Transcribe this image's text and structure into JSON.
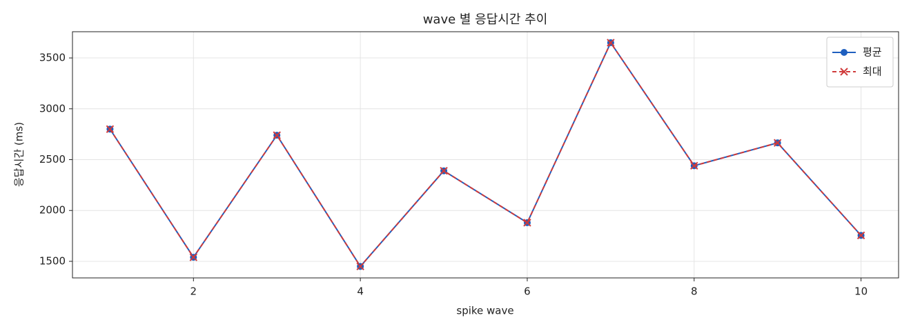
{
  "chart_data": {
    "type": "line",
    "title": "wave 별 응답시간 추이",
    "xlabel": "spike wave",
    "ylabel": "응답시간 (ms)",
    "x": [
      1,
      2,
      3,
      4,
      5,
      6,
      7,
      8,
      9,
      10
    ],
    "series": [
      {
        "name": "평균",
        "color": "#1f5fbf",
        "linestyle": "solid",
        "marker": "o",
        "values": [
          2800,
          1540,
          2740,
          1450,
          2390,
          1880,
          3650,
          2440,
          2665,
          1755
        ]
      },
      {
        "name": "최대",
        "color": "#d03a3a",
        "linestyle": "dashed",
        "marker": "x",
        "values": [
          2800,
          1540,
          2740,
          1450,
          2390,
          1880,
          3650,
          2440,
          2665,
          1755
        ]
      }
    ],
    "xlim": [
      0.55,
      10.45
    ],
    "ylim": [
      1337,
      3758
    ],
    "xticks": [
      2,
      4,
      6,
      8,
      10
    ],
    "yticks": [
      1500,
      2000,
      2500,
      3000,
      3500
    ],
    "grid": true,
    "legend": "upper right"
  }
}
